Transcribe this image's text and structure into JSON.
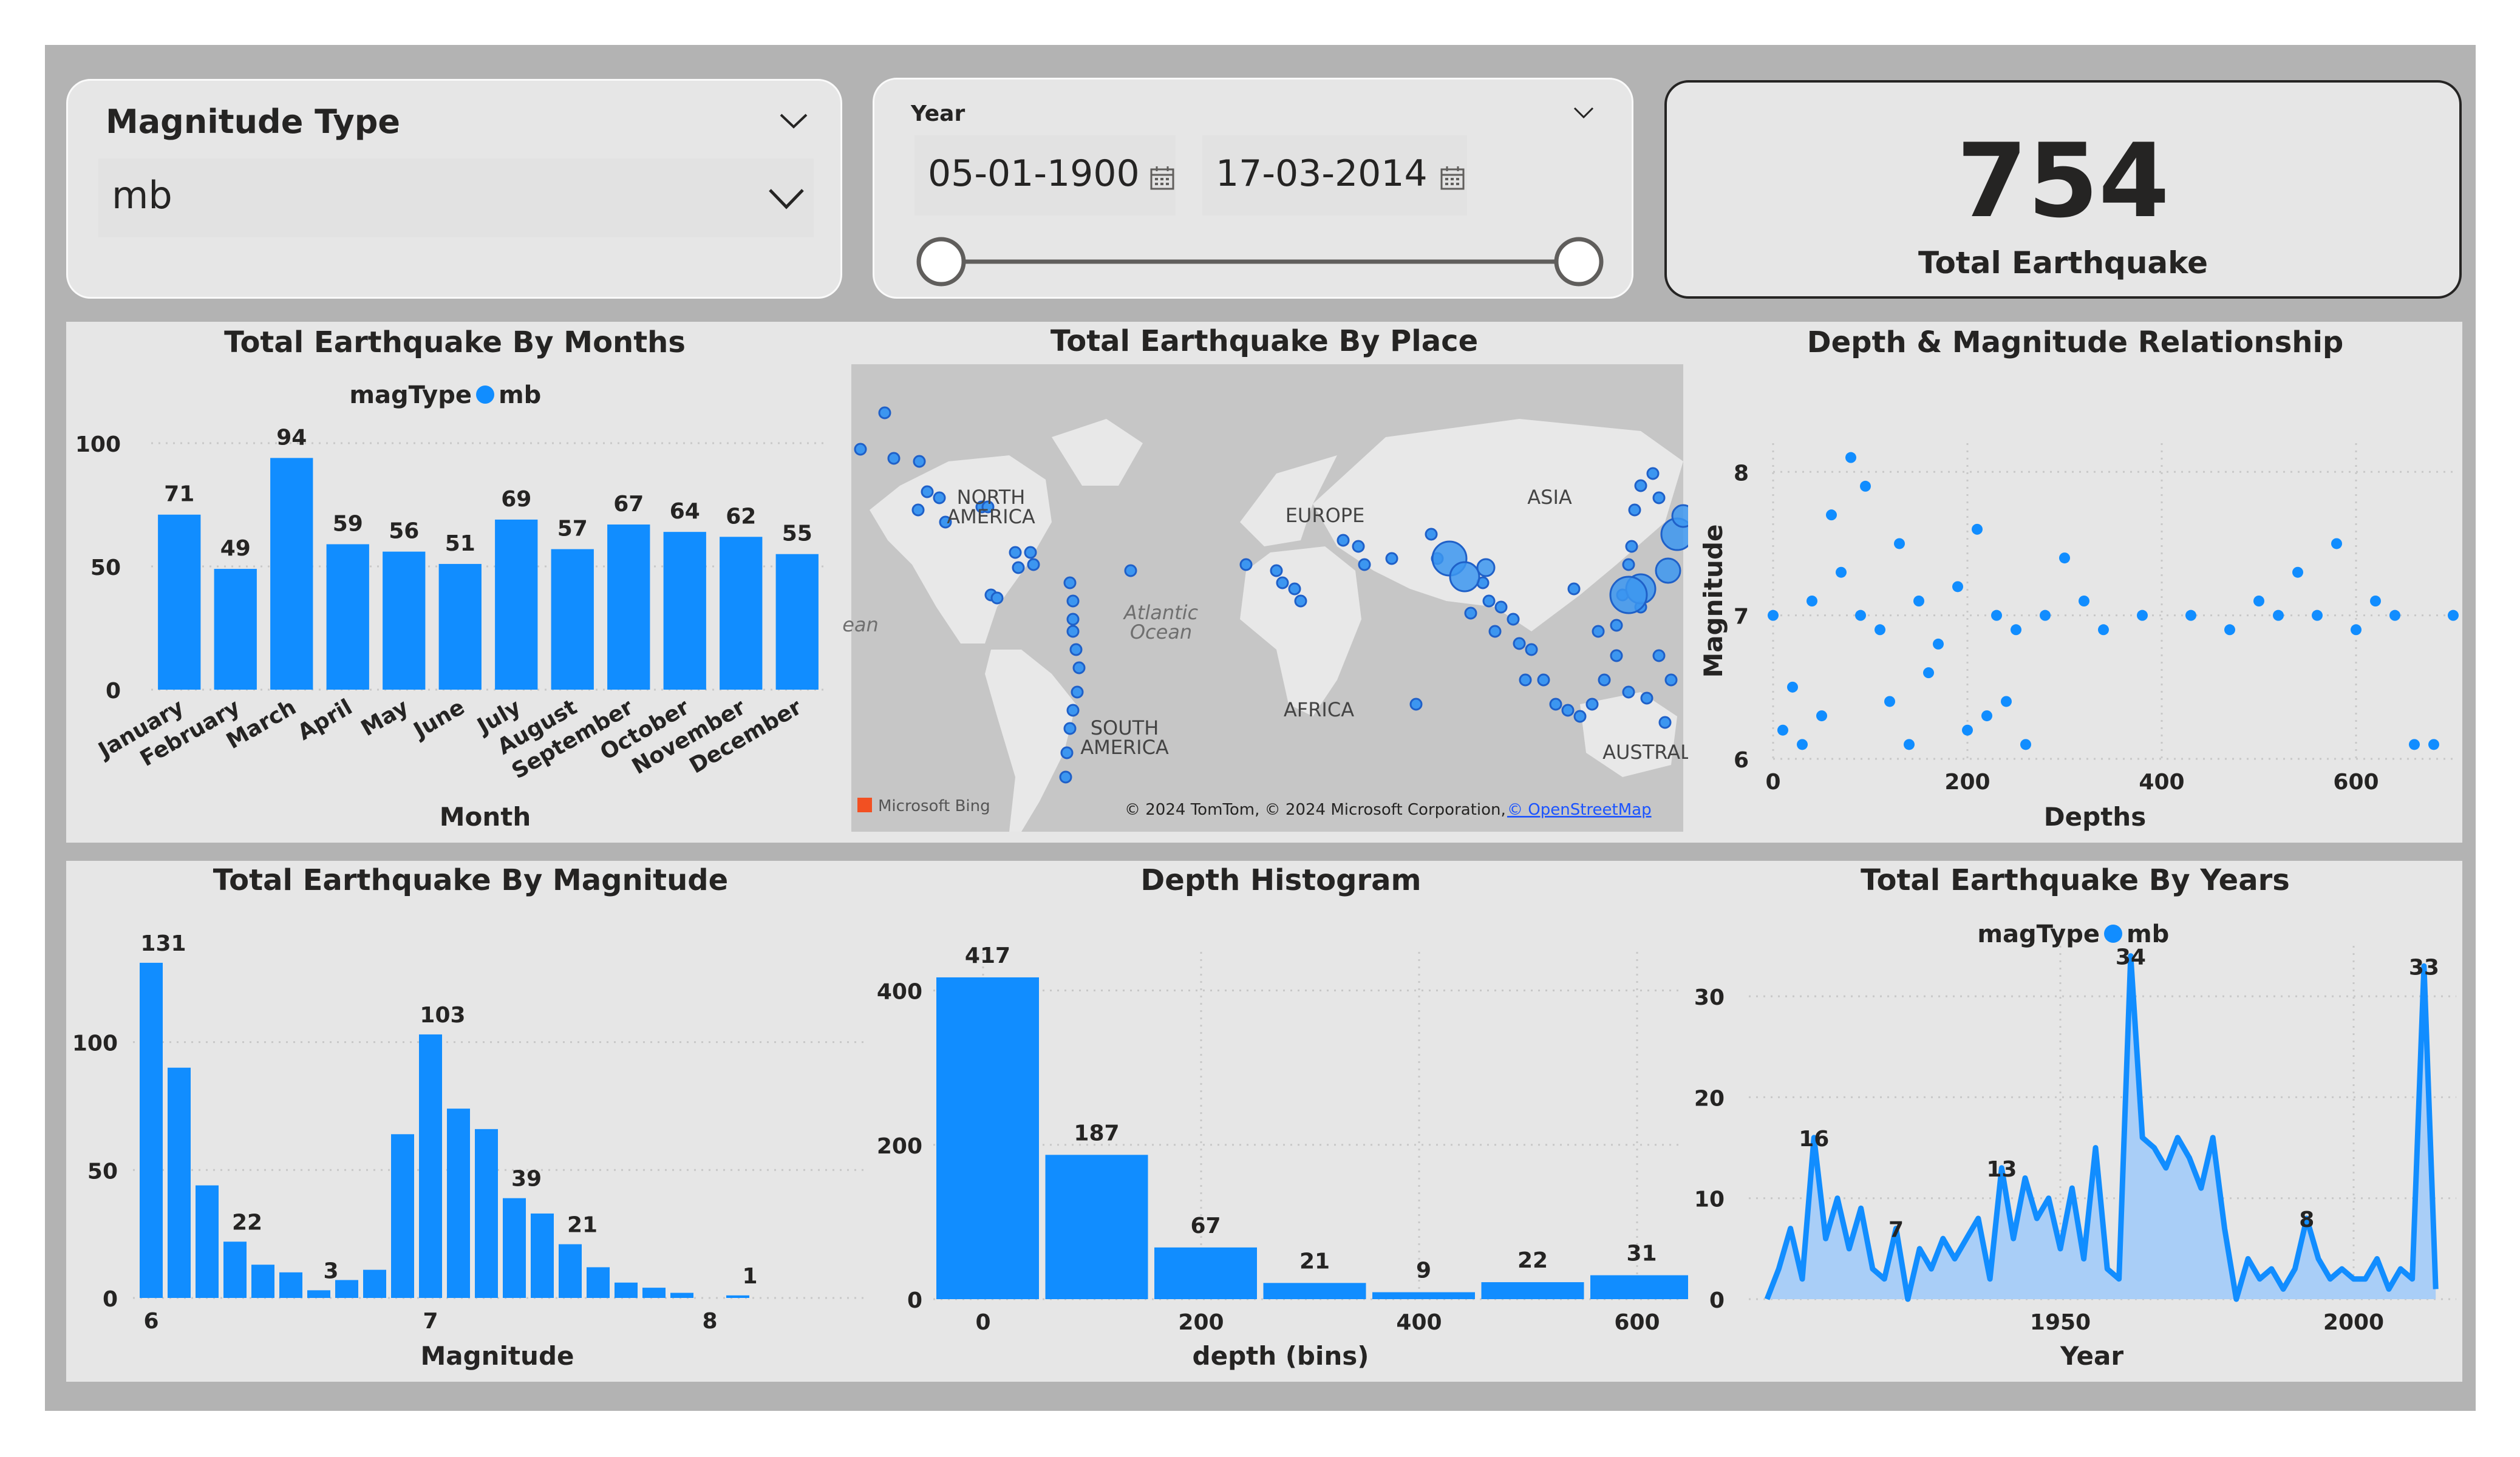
{
  "colors": {
    "accent": "#118dff",
    "area_fill": "#a9cef7",
    "frame": "#b3b3b3",
    "panel": "#e6e6e6",
    "text": "#252423"
  },
  "slicer_magnitude": {
    "title": "Magnitude Type",
    "value": "mb",
    "header_icon": "chevron-down-icon",
    "value_icon": "chevron-down-icon"
  },
  "slicer_year": {
    "title": "Year",
    "start_date": "05-01-1900",
    "end_date": "17-03-2014",
    "icon": "calendar-icon",
    "range": [
      0,
      1
    ]
  },
  "kpi": {
    "value": "754",
    "label": "Total Earthquake"
  },
  "charts": {
    "by_months": {
      "title": "Total Earthquake By Months",
      "legend_title": "magType",
      "legend_item": "mb",
      "xlabel": "Month",
      "yticks": [
        "0",
        "50",
        "100"
      ]
    },
    "by_place": {
      "title": "Total Earthquake By Place",
      "labels": [
        "NORTH",
        "AMERICA",
        "EUROPE",
        "ASIA",
        "Atlantic",
        "Ocean",
        "AFRICA",
        "SOUTH",
        "AMERICA",
        "AUSTRAL",
        "ean"
      ],
      "attribution": "© 2024 TomTom, © 2024 Microsoft Corporation,",
      "attribution_link": "© OpenStreetMap",
      "bing": "Microsoft Bing"
    },
    "depth_mag": {
      "title": "Depth & Magnitude Relationship",
      "xlabel": "Depths",
      "ylabel": "Magnitude",
      "xticks": [
        "0",
        "200",
        "400",
        "600"
      ],
      "yticks": [
        "6",
        "7",
        "8"
      ]
    },
    "by_magnitude": {
      "title": "Total Earthquake By Magnitude",
      "xlabel": "Magnitude",
      "xticks": [
        "6",
        "7",
        "8"
      ],
      "yticks": [
        "0",
        "50",
        "100"
      ]
    },
    "depth_hist": {
      "title": "Depth Histogram",
      "xlabel": "depth (bins)",
      "xticks": [
        "0",
        "200",
        "400",
        "600"
      ],
      "yticks": [
        "0",
        "200",
        "400"
      ]
    },
    "by_years": {
      "title": "Total Earthquake By Years",
      "legend_title": "magType",
      "legend_item": "mb",
      "xlabel": "Year",
      "xticks": [
        "1950",
        "2000"
      ],
      "yticks": [
        "0",
        "10",
        "20",
        "30"
      ]
    }
  },
  "chart_data": [
    {
      "id": "by_months",
      "type": "bar",
      "categories": [
        "January",
        "February",
        "March",
        "April",
        "May",
        "June",
        "July",
        "August",
        "September",
        "October",
        "November",
        "December"
      ],
      "series": [
        {
          "name": "mb",
          "values": [
            71,
            49,
            94,
            59,
            56,
            51,
            69,
            57,
            67,
            64,
            62,
            55
          ]
        }
      ],
      "title": "Total Earthquake By Months",
      "xlabel": "Month",
      "ylabel": "",
      "ylim": [
        0,
        100
      ],
      "grid": true,
      "legend": "top-center"
    },
    {
      "id": "depth_mag",
      "type": "scatter",
      "title": "Depth & Magnitude Relationship",
      "xlabel": "Depths",
      "ylabel": "Magnitude",
      "xlim": [
        0,
        700
      ],
      "ylim": [
        6,
        8.2
      ],
      "grid": true,
      "points": [
        [
          40,
          7.1
        ],
        [
          70,
          7.3
        ],
        [
          90,
          7.0
        ],
        [
          110,
          6.9
        ],
        [
          130,
          7.5
        ],
        [
          60,
          7.7
        ],
        [
          80,
          8.1
        ],
        [
          95,
          7.9
        ],
        [
          150,
          7.1
        ],
        [
          170,
          6.8
        ],
        [
          190,
          7.2
        ],
        [
          210,
          7.6
        ],
        [
          230,
          7.0
        ],
        [
          250,
          6.9
        ],
        [
          0,
          7.0
        ],
        [
          10,
          6.2
        ],
        [
          20,
          6.5
        ],
        [
          30,
          6.1
        ],
        [
          50,
          6.3
        ],
        [
          120,
          6.4
        ],
        [
          140,
          6.1
        ],
        [
          160,
          6.6
        ],
        [
          200,
          6.2
        ],
        [
          220,
          6.3
        ],
        [
          240,
          6.4
        ],
        [
          260,
          6.1
        ],
        [
          280,
          7.0
        ],
        [
          300,
          7.4
        ],
        [
          320,
          7.1
        ],
        [
          340,
          6.9
        ],
        [
          380,
          7.0
        ],
        [
          430,
          7.0
        ],
        [
          470,
          6.9
        ],
        [
          500,
          7.1
        ],
        [
          520,
          7.0
        ],
        [
          540,
          7.3
        ],
        [
          560,
          7.0
        ],
        [
          580,
          7.5
        ],
        [
          600,
          6.9
        ],
        [
          620,
          7.1
        ],
        [
          640,
          7.0
        ],
        [
          660,
          6.1
        ],
        [
          680,
          6.1
        ],
        [
          700,
          7.0
        ]
      ]
    },
    {
      "id": "by_magnitude",
      "type": "bar",
      "x": [
        6.0,
        6.1,
        6.2,
        6.3,
        6.4,
        6.5,
        6.6,
        6.7,
        6.8,
        6.9,
        7.0,
        7.1,
        7.2,
        7.3,
        7.4,
        7.5,
        7.6,
        7.7,
        7.8,
        7.9,
        8.0,
        8.1
      ],
      "series": [
        {
          "name": "mb",
          "values": [
            131,
            90,
            44,
            22,
            13,
            10,
            3,
            7,
            11,
            64,
            103,
            74,
            66,
            39,
            33,
            21,
            12,
            6,
            4,
            2,
            0,
            1
          ]
        }
      ],
      "title": "Total Earthquake By Magnitude",
      "xlabel": "Magnitude",
      "ylim": [
        0,
        140
      ],
      "grid": true,
      "labeled": [
        131,
        22,
        3,
        103,
        39,
        21,
        1
      ]
    },
    {
      "id": "depth_hist",
      "type": "bar",
      "categories": [
        "0",
        "100",
        "200",
        "300",
        "400",
        "500",
        "600"
      ],
      "series": [
        {
          "name": "mb",
          "values": [
            417,
            187,
            67,
            21,
            9,
            22,
            31
          ]
        }
      ],
      "title": "Depth Histogram",
      "xlabel": "depth (bins)",
      "ylim": [
        0,
        450
      ],
      "grid": true
    },
    {
      "id": "by_years",
      "type": "area",
      "title": "Total Earthquake By Years",
      "xlabel": "Year",
      "ylim": [
        0,
        35
      ],
      "grid": true,
      "legend": "top-center",
      "x": [
        1900,
        1902,
        1904,
        1906,
        1908,
        1910,
        1912,
        1914,
        1916,
        1918,
        1920,
        1922,
        1924,
        1926,
        1928,
        1930,
        1932,
        1934,
        1936,
        1938,
        1940,
        1942,
        1944,
        1946,
        1948,
        1950,
        1952,
        1954,
        1956,
        1958,
        1960,
        1962,
        1964,
        1966,
        1968,
        1970,
        1972,
        1974,
        1976,
        1978,
        1980,
        1982,
        1984,
        1986,
        1988,
        1990,
        1992,
        1994,
        1996,
        1998,
        2000,
        2002,
        2004,
        2006,
        2008,
        2010,
        2012,
        2014
      ],
      "series": [
        {
          "name": "mb",
          "values": [
            0,
            3,
            7,
            2,
            16,
            6,
            10,
            5,
            9,
            3,
            2,
            7,
            0,
            5,
            3,
            6,
            4,
            6,
            8,
            2,
            13,
            6,
            12,
            8,
            10,
            5,
            11,
            4,
            15,
            3,
            2,
            34,
            16,
            15,
            13,
            16,
            14,
            11,
            16,
            7,
            0,
            4,
            2,
            3,
            1,
            3,
            8,
            4,
            2,
            3,
            2,
            2,
            4,
            1,
            3,
            2,
            33,
            1
          ]
        }
      ],
      "labeled": [
        [
          1908,
          16
        ],
        [
          1922,
          7
        ],
        [
          1940,
          13
        ],
        [
          1962,
          34
        ],
        [
          1992,
          8
        ],
        [
          2012,
          33
        ]
      ]
    }
  ]
}
